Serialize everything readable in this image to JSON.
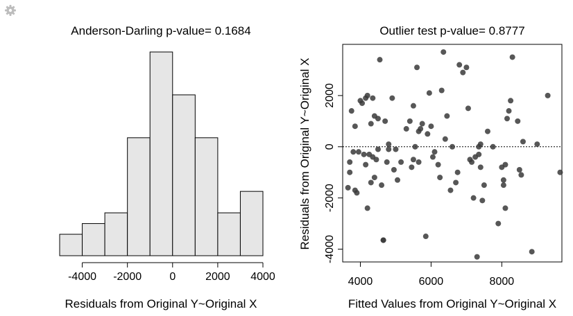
{
  "settings_icon": "gear-icon",
  "chart_data": [
    {
      "type": "histogram",
      "title": "Anderson-Darling p-value= 0.1684",
      "xlabel": "Residuals from Original Y~Original X",
      "xlim": [
        -5000,
        4000
      ],
      "xticks": [
        -4000,
        -2000,
        0,
        2000,
        4000
      ],
      "tick_labels": [
        "-4000",
        "-2000",
        "0",
        "2000",
        "4000"
      ],
      "bin_edges": [
        -5000,
        -4000,
        -3000,
        -2000,
        -1000,
        0,
        1000,
        2000,
        3000,
        4000
      ],
      "counts": [
        2,
        3,
        4,
        11,
        19,
        15,
        11,
        4,
        6
      ],
      "bar_fill": "#e6e6e6",
      "axes_color": "#000000"
    },
    {
      "type": "scatter",
      "title": "Outlier test p-value= 0.8777",
      "xlabel": "Fitted Values from Original Y~Original X",
      "ylabel": "Residuals from Original Y~Original X",
      "xlim": [
        3500,
        9700
      ],
      "ylim": [
        -4500,
        4000
      ],
      "xticks": [
        4000,
        6000,
        8000
      ],
      "x_tick_labels": [
        "4000",
        "6000",
        "8000"
      ],
      "yticks": [
        -4000,
        -2000,
        0,
        2000
      ],
      "y_tick_labels": [
        "-4000",
        "-2000",
        "0",
        "2000"
      ],
      "reference_line": {
        "y": 0,
        "style": "dotted"
      },
      "point_color": "#3a3a3a",
      "x": [
        3650,
        3700,
        3700,
        3750,
        3800,
        3850,
        3850,
        3900,
        3950,
        4000,
        4050,
        4100,
        4150,
        4150,
        4200,
        4200,
        4250,
        4300,
        4300,
        4350,
        4350,
        4400,
        4400,
        4450,
        4500,
        4500,
        4550,
        4600,
        4650,
        4650,
        4700,
        4750,
        4800,
        4800,
        4900,
        4950,
        5000,
        5050,
        5150,
        5300,
        5400,
        5450,
        5500,
        5500,
        5550,
        5600,
        5650,
        5650,
        5700,
        5750,
        5850,
        5900,
        5950,
        6000,
        6050,
        6100,
        6200,
        6250,
        6300,
        6350,
        6400,
        6450,
        6550,
        6600,
        6700,
        6750,
        6800,
        6900,
        7000,
        7050,
        7100,
        7150,
        7200,
        7250,
        7300,
        7350,
        7350,
        7400,
        7400,
        7450,
        7500,
        7600,
        7750,
        7900,
        8000,
        8050,
        8050,
        8100,
        8100,
        8150,
        8200,
        8250,
        8300,
        8450,
        8500,
        8550,
        8600,
        8850,
        9000,
        9300,
        9650
      ],
      "y": [
        -1600,
        -1000,
        -600,
        1400,
        -200,
        800,
        -1700,
        -1800,
        -200,
        1800,
        1700,
        -300,
        -700,
        1900,
        -2400,
        2000,
        -300,
        900,
        -1400,
        1900,
        -400,
        -1200,
        1200,
        -500,
        -100,
        1100,
        3400,
        -1500,
        -3650,
        -3650,
        1000,
        -600,
        -100,
        100,
        1900,
        -900,
        -100,
        -1300,
        -600,
        700,
        1000,
        -800,
        1600,
        -500,
        0,
        3100,
        600,
        -600,
        700,
        900,
        -3500,
        500,
        2100,
        800,
        -400,
        -200,
        -700,
        -1200,
        2200,
        3700,
        300,
        1200,
        -1700,
        0,
        -1400,
        -1000,
        3200,
        2900,
        3100,
        1500,
        -500,
        -600,
        -2000,
        -400,
        -4300,
        -300,
        0,
        100,
        -800,
        -2100,
        -1500,
        600,
        0,
        -3000,
        -800,
        -1500,
        -1300,
        -2400,
        -700,
        1100,
        1400,
        1800,
        3500,
        1000,
        -900,
        -1100,
        200,
        -4100,
        100,
        2000,
        -1000
      ]
    }
  ]
}
